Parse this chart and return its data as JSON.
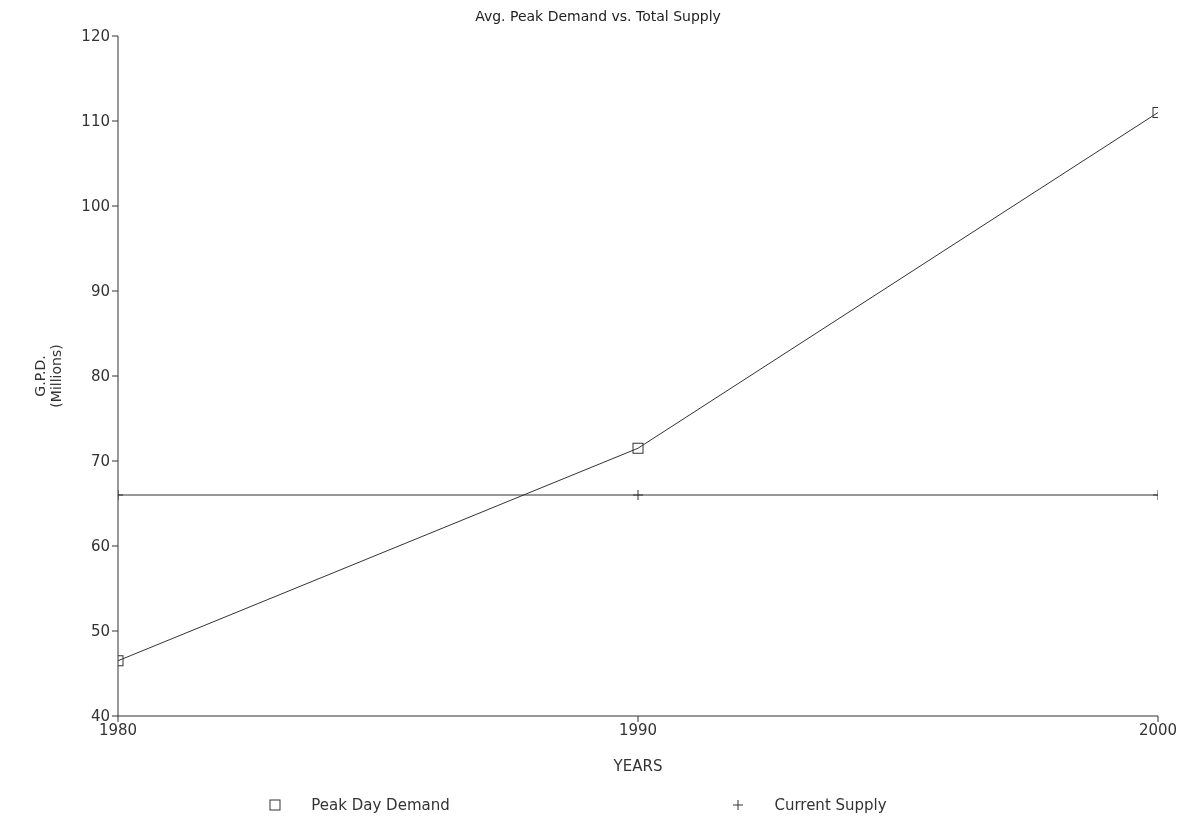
{
  "chart_data": {
    "type": "line",
    "title": "Avg. Peak Demand vs. Total Supply",
    "xlabel": "YEARS",
    "ylabel": "G.P.D.\n(Millions)",
    "x": [
      1980,
      1990,
      2000
    ],
    "xlim": [
      1980,
      2000
    ],
    "xticks": [
      1980,
      1990,
      2000
    ],
    "ylim": [
      40,
      120
    ],
    "yticks": [
      40,
      50,
      60,
      70,
      80,
      90,
      100,
      110,
      120
    ],
    "legend": "bottom",
    "line_style": "solid",
    "series": [
      {
        "name": "Peak Day Demand",
        "color": "#333333",
        "marker": "square",
        "values": [
          46.5,
          71.5,
          111
        ]
      },
      {
        "name": "Current Supply",
        "color": "#333333",
        "marker": "cross",
        "values": [
          66,
          66,
          66
        ]
      }
    ]
  }
}
